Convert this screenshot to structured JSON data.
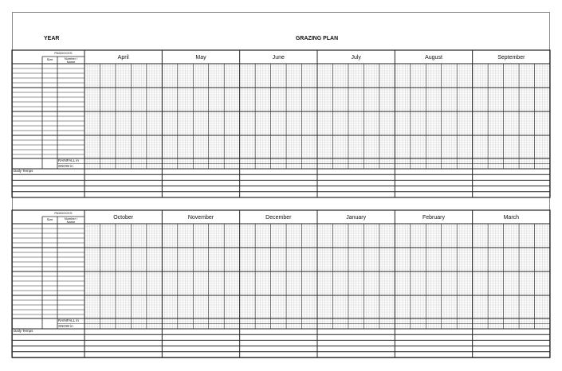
{
  "header": {
    "year_label": "YEAR",
    "title": "GRAZING PLAN"
  },
  "columns": {
    "paddocks": "PADDOCKS",
    "size": "Size",
    "number_name_1": "Number /",
    "number_name_2": "Name"
  },
  "rows": {
    "rainfall": "RAINFALL in",
    "snow": "SNOW in",
    "daily_temps": "Daily Temps"
  },
  "sections": [
    {
      "months": [
        "April",
        "May",
        "June",
        "July",
        "August",
        "September"
      ]
    },
    {
      "months": [
        "October",
        "November",
        "December",
        "January",
        "February",
        "March"
      ]
    }
  ],
  "colors": {
    "line": "#222222",
    "fine_grid": "#bbbbbb"
  }
}
